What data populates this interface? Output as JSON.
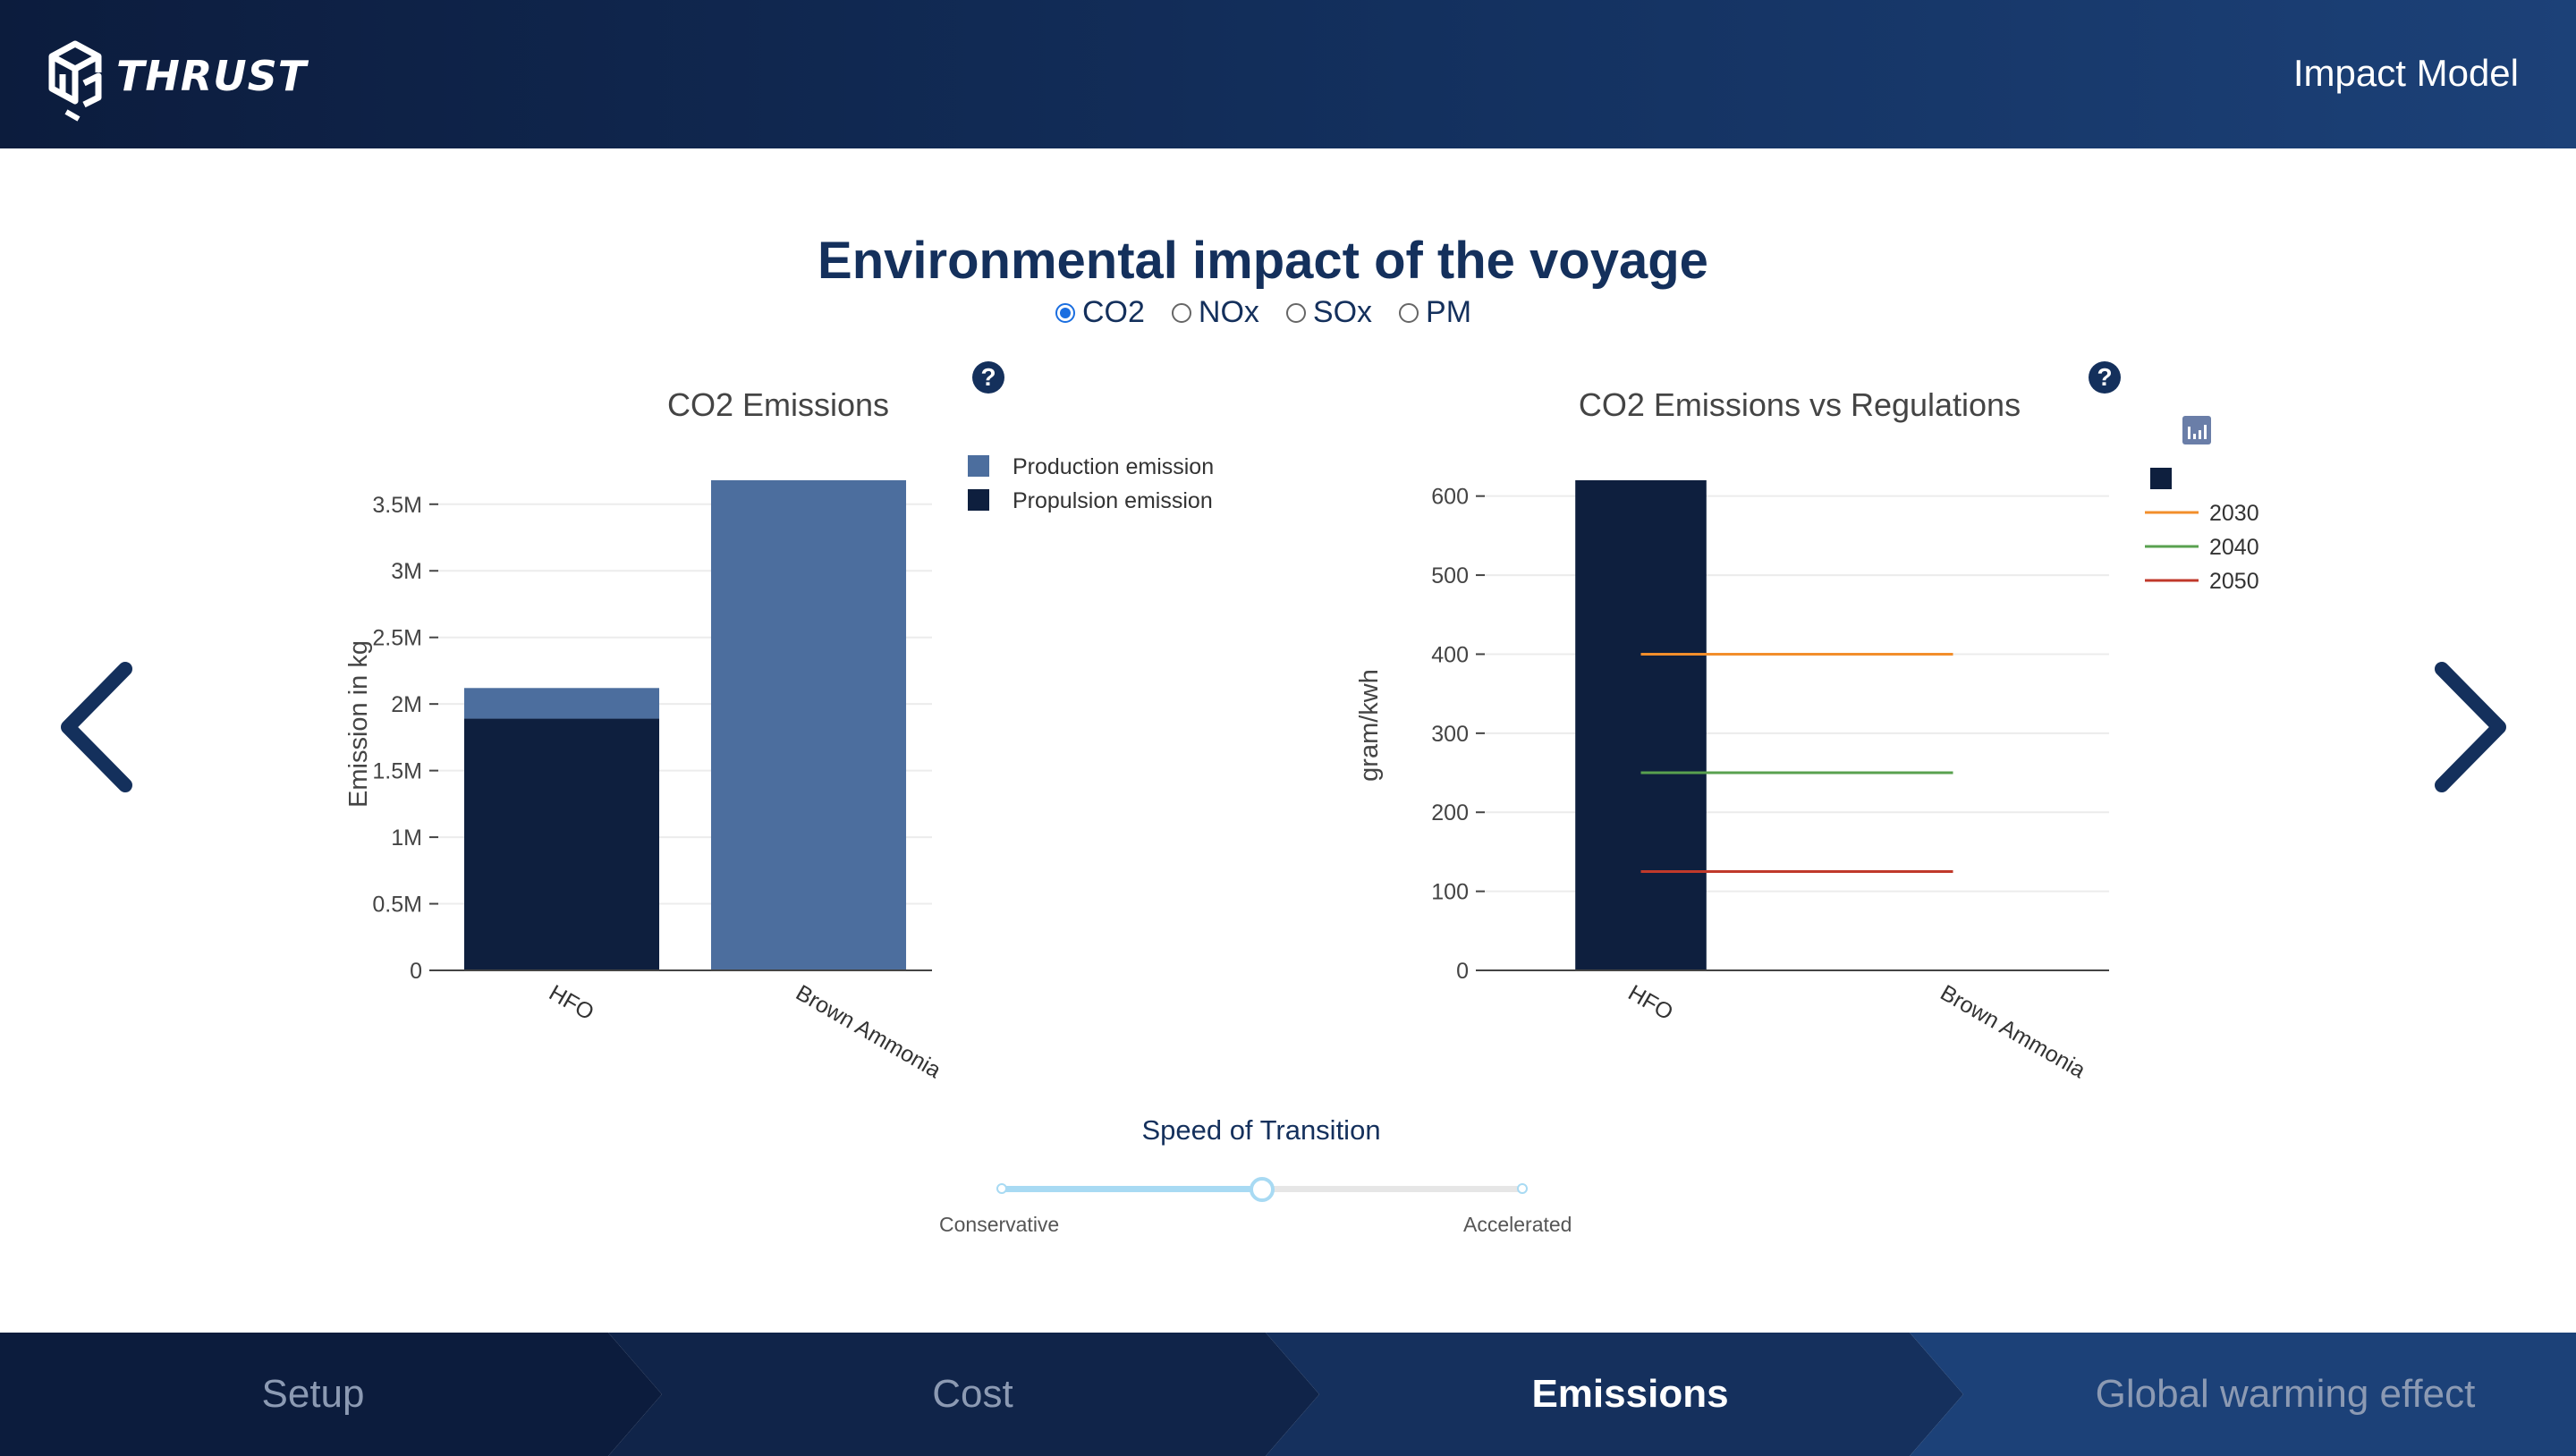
{
  "header": {
    "logo_text": "THRUST",
    "app_title": "Impact Model"
  },
  "page": {
    "title": "Environmental impact of the voyage"
  },
  "pollutant_options": [
    {
      "label": "CO2",
      "selected": true
    },
    {
      "label": "NOx",
      "selected": false
    },
    {
      "label": "SOx",
      "selected": false
    },
    {
      "label": "PM",
      "selected": false
    }
  ],
  "help_label": "?",
  "chart_data": [
    {
      "type": "bar",
      "stacked": true,
      "title": "CO2 Emissions",
      "xlabel": "",
      "ylabel": "Emission in kg",
      "categories": [
        "HFO",
        "Brown Ammonia"
      ],
      "series": [
        {
          "name": "Propulsion emission",
          "values": [
            1890000,
            0
          ],
          "color": "#0e1f3e"
        },
        {
          "name": "Production emission",
          "values": [
            230000,
            3680000
          ],
          "color": "#4c6e9e"
        }
      ],
      "ylim": [
        0,
        3700000
      ],
      "yticks": [
        0,
        500000,
        1000000,
        1500000,
        2000000,
        2500000,
        3000000,
        3500000
      ],
      "ytick_labels": [
        "0",
        "0.5M",
        "1M",
        "1.5M",
        "2M",
        "2.5M",
        "3M",
        "3.5M"
      ],
      "legend_order": [
        "Production emission",
        "Propulsion emission"
      ],
      "legend_position": "top-right",
      "grid": true
    },
    {
      "type": "bar",
      "title": "CO2 Emissions vs Regulations",
      "xlabel": "",
      "ylabel": "gram/kwh",
      "categories": [
        "HFO",
        "Brown Ammonia"
      ],
      "series": [
        {
          "name": "",
          "values": [
            620,
            0
          ],
          "color": "#0e1f3e"
        }
      ],
      "lines": [
        {
          "name": "2030",
          "value": 400,
          "color": "#f28e2b"
        },
        {
          "name": "2040",
          "value": 250,
          "color": "#59a14f"
        },
        {
          "name": "2050",
          "value": 125,
          "color": "#c0392b"
        }
      ],
      "ylim": [
        0,
        620
      ],
      "yticks": [
        0,
        100,
        200,
        300,
        400,
        500,
        600
      ],
      "ytick_labels": [
        "0",
        "100",
        "200",
        "300",
        "400",
        "500",
        "600"
      ],
      "legend_position": "top-right",
      "grid": true
    }
  ],
  "slider": {
    "title": "Speed of Transition",
    "min_label": "Conservative",
    "max_label": "Accelerated",
    "value": 0.5
  },
  "steps": [
    {
      "label": "Setup",
      "active": false
    },
    {
      "label": "Cost",
      "active": false
    },
    {
      "label": "Emissions",
      "active": true
    },
    {
      "label": "Global warming effect",
      "active": false
    }
  ],
  "colors": {
    "header_dark": "#0c1c3d",
    "navy": "#14305c",
    "bar_dark": "#0e1f3e",
    "bar_light": "#4c6e9e",
    "slider_accent": "#a8daf3"
  }
}
